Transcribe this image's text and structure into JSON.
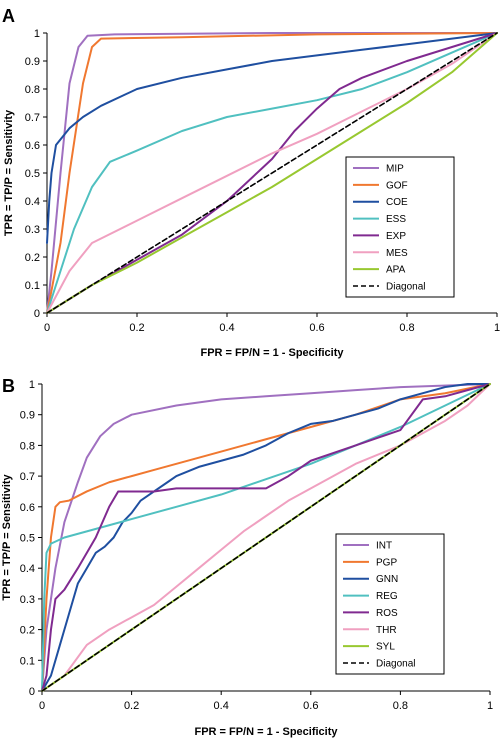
{
  "chart_data": [
    {
      "panel": "A",
      "type": "line",
      "xlabel": "FPR = FP/N = 1 - Specificity",
      "ylabel": "TPR = TP/P = Sensitivity",
      "xlim": [
        0,
        1
      ],
      "ylim": [
        0,
        1
      ],
      "xticks": [
        "0",
        "0.2",
        "0.4",
        "0.6",
        "0.8",
        "1"
      ],
      "yticks": [
        "0",
        "0.1",
        "0.2",
        "0.3",
        "0.4",
        "0.5",
        "0.6",
        "0.7",
        "0.8",
        "0.9",
        "1"
      ],
      "grid": false,
      "legend": "right",
      "series": [
        {
          "name": "MIP",
          "color": "#A070C0",
          "dash": false,
          "points": [
            [
              0,
              0
            ],
            [
              0.01,
              0.15
            ],
            [
              0.03,
              0.5
            ],
            [
              0.05,
              0.82
            ],
            [
              0.07,
              0.95
            ],
            [
              0.09,
              0.99
            ],
            [
              0.15,
              0.995
            ],
            [
              0.5,
              1.0
            ],
            [
              1,
              1
            ]
          ]
        },
        {
          "name": "GOF",
          "color": "#F07830",
          "dash": false,
          "points": [
            [
              0,
              0
            ],
            [
              0.01,
              0.08
            ],
            [
              0.03,
              0.25
            ],
            [
              0.05,
              0.5
            ],
            [
              0.08,
              0.82
            ],
            [
              0.1,
              0.95
            ],
            [
              0.12,
              0.98
            ],
            [
              0.3,
              0.985
            ],
            [
              0.6,
              0.995
            ],
            [
              1,
              1
            ]
          ]
        },
        {
          "name": "COE",
          "color": "#1F4FA0",
          "dash": false,
          "points": [
            [
              0,
              0.25
            ],
            [
              0.005,
              0.4
            ],
            [
              0.01,
              0.5
            ],
            [
              0.02,
              0.6
            ],
            [
              0.05,
              0.66
            ],
            [
              0.08,
              0.7
            ],
            [
              0.12,
              0.74
            ],
            [
              0.2,
              0.8
            ],
            [
              0.3,
              0.84
            ],
            [
              0.4,
              0.87
            ],
            [
              0.5,
              0.9
            ],
            [
              0.6,
              0.92
            ],
            [
              0.7,
              0.94
            ],
            [
              0.8,
              0.96
            ],
            [
              0.9,
              0.98
            ],
            [
              1,
              1
            ]
          ]
        },
        {
          "name": "ESS",
          "color": "#50C0C0",
          "dash": false,
          "points": [
            [
              0,
              0
            ],
            [
              0.03,
              0.15
            ],
            [
              0.06,
              0.3
            ],
            [
              0.1,
              0.45
            ],
            [
              0.14,
              0.54
            ],
            [
              0.2,
              0.58
            ],
            [
              0.3,
              0.65
            ],
            [
              0.4,
              0.7
            ],
            [
              0.5,
              0.73
            ],
            [
              0.6,
              0.76
            ],
            [
              0.7,
              0.8
            ],
            [
              0.8,
              0.86
            ],
            [
              0.9,
              0.93
            ],
            [
              1,
              1
            ]
          ]
        },
        {
          "name": "EXP",
          "color": "#802A90",
          "dash": false,
          "points": [
            [
              0,
              0
            ],
            [
              0.1,
              0.1
            ],
            [
              0.2,
              0.19
            ],
            [
              0.3,
              0.28
            ],
            [
              0.4,
              0.4
            ],
            [
              0.5,
              0.55
            ],
            [
              0.55,
              0.65
            ],
            [
              0.6,
              0.73
            ],
            [
              0.65,
              0.8
            ],
            [
              0.7,
              0.84
            ],
            [
              0.8,
              0.9
            ],
            [
              0.9,
              0.95
            ],
            [
              1,
              1
            ]
          ]
        },
        {
          "name": "MES",
          "color": "#F0A0C0",
          "dash": false,
          "points": [
            [
              0,
              0
            ],
            [
              0.05,
              0.15
            ],
            [
              0.1,
              0.25
            ],
            [
              0.2,
              0.33
            ],
            [
              0.3,
              0.41
            ],
            [
              0.4,
              0.49
            ],
            [
              0.5,
              0.57
            ],
            [
              0.6,
              0.64
            ],
            [
              0.7,
              0.72
            ],
            [
              0.8,
              0.8
            ],
            [
              0.9,
              0.89
            ],
            [
              1,
              1
            ]
          ]
        },
        {
          "name": "APA",
          "color": "#98C830",
          "dash": false,
          "points": [
            [
              0,
              0
            ],
            [
              0.1,
              0.1
            ],
            [
              0.2,
              0.18
            ],
            [
              0.3,
              0.27
            ],
            [
              0.4,
              0.36
            ],
            [
              0.5,
              0.45
            ],
            [
              0.6,
              0.55
            ],
            [
              0.7,
              0.65
            ],
            [
              0.8,
              0.75
            ],
            [
              0.9,
              0.86
            ],
            [
              1,
              1
            ]
          ]
        },
        {
          "name": "Diagonal",
          "color": "#000000",
          "dash": true,
          "points": [
            [
              0,
              0
            ],
            [
              1,
              1
            ]
          ]
        }
      ]
    },
    {
      "panel": "B",
      "type": "line",
      "xlabel": "FPR = FP/N = 1 - Specificity",
      "ylabel": "TPR = TP/P = Sensitivity",
      "xlim": [
        0,
        1
      ],
      "ylim": [
        0,
        1
      ],
      "xticks": [
        "0",
        "0.2",
        "0.4",
        "0.6",
        "0.8",
        "1"
      ],
      "yticks": [
        "0",
        "0.1",
        "0.2",
        "0.3",
        "0.4",
        "0.5",
        "0.6",
        "0.7",
        "0.8",
        "0.9",
        "1"
      ],
      "grid": false,
      "legend": "right",
      "series": [
        {
          "name": "INT",
          "color": "#A070C0",
          "dash": false,
          "points": [
            [
              0,
              0
            ],
            [
              0.01,
              0.2
            ],
            [
              0.03,
              0.4
            ],
            [
              0.05,
              0.55
            ],
            [
              0.08,
              0.68
            ],
            [
              0.1,
              0.76
            ],
            [
              0.13,
              0.83
            ],
            [
              0.16,
              0.87
            ],
            [
              0.2,
              0.9
            ],
            [
              0.3,
              0.93
            ],
            [
              0.4,
              0.95
            ],
            [
              0.5,
              0.96
            ],
            [
              0.6,
              0.97
            ],
            [
              0.7,
              0.98
            ],
            [
              0.8,
              0.99
            ],
            [
              1,
              1
            ]
          ]
        },
        {
          "name": "PGP",
          "color": "#F07830",
          "dash": false,
          "points": [
            [
              0,
              0
            ],
            [
              0.01,
              0.3
            ],
            [
              0.02,
              0.5
            ],
            [
              0.03,
              0.6
            ],
            [
              0.04,
              0.615
            ],
            [
              0.06,
              0.62
            ],
            [
              0.1,
              0.65
            ],
            [
              0.15,
              0.68
            ],
            [
              0.2,
              0.7
            ],
            [
              0.25,
              0.72
            ],
            [
              0.3,
              0.74
            ],
            [
              0.35,
              0.76
            ],
            [
              0.4,
              0.78
            ],
            [
              0.5,
              0.82
            ],
            [
              0.6,
              0.86
            ],
            [
              0.7,
              0.9
            ],
            [
              0.8,
              0.95
            ],
            [
              0.9,
              0.97
            ],
            [
              1,
              1
            ]
          ]
        },
        {
          "name": "GNN",
          "color": "#1F4FA0",
          "dash": false,
          "points": [
            [
              0,
              0
            ],
            [
              0.02,
              0.05
            ],
            [
              0.04,
              0.15
            ],
            [
              0.06,
              0.25
            ],
            [
              0.08,
              0.35
            ],
            [
              0.1,
              0.4
            ],
            [
              0.12,
              0.45
            ],
            [
              0.14,
              0.47
            ],
            [
              0.16,
              0.5
            ],
            [
              0.18,
              0.55
            ],
            [
              0.2,
              0.58
            ],
            [
              0.22,
              0.62
            ],
            [
              0.25,
              0.65
            ],
            [
              0.28,
              0.68
            ],
            [
              0.3,
              0.7
            ],
            [
              0.35,
              0.73
            ],
            [
              0.4,
              0.75
            ],
            [
              0.45,
              0.77
            ],
            [
              0.5,
              0.8
            ],
            [
              0.55,
              0.84
            ],
            [
              0.6,
              0.87
            ],
            [
              0.65,
              0.88
            ],
            [
              0.7,
              0.9
            ],
            [
              0.75,
              0.92
            ],
            [
              0.8,
              0.95
            ],
            [
              0.85,
              0.97
            ],
            [
              0.9,
              0.99
            ],
            [
              0.95,
              1.0
            ],
            [
              1,
              1
            ]
          ]
        },
        {
          "name": "REG",
          "color": "#50C0C0",
          "dash": false,
          "points": [
            [
              0,
              0
            ],
            [
              0.005,
              0.3
            ],
            [
              0.01,
              0.45
            ],
            [
              0.02,
              0.48
            ],
            [
              0.05,
              0.5
            ],
            [
              0.1,
              0.52
            ],
            [
              0.2,
              0.56
            ],
            [
              0.3,
              0.6
            ],
            [
              0.4,
              0.64
            ],
            [
              0.5,
              0.69
            ],
            [
              0.6,
              0.74
            ],
            [
              0.7,
              0.8
            ],
            [
              0.8,
              0.86
            ],
            [
              0.9,
              0.93
            ],
            [
              1,
              1
            ]
          ]
        },
        {
          "name": "ROS",
          "color": "#802A90",
          "dash": false,
          "points": [
            [
              0,
              0
            ],
            [
              0.01,
              0.05
            ],
            [
              0.02,
              0.2
            ],
            [
              0.03,
              0.3
            ],
            [
              0.05,
              0.33
            ],
            [
              0.08,
              0.4
            ],
            [
              0.1,
              0.45
            ],
            [
              0.12,
              0.5
            ],
            [
              0.15,
              0.6
            ],
            [
              0.17,
              0.65
            ],
            [
              0.25,
              0.65
            ],
            [
              0.3,
              0.66
            ],
            [
              0.4,
              0.66
            ],
            [
              0.5,
              0.66
            ],
            [
              0.55,
              0.7
            ],
            [
              0.6,
              0.75
            ],
            [
              0.7,
              0.8
            ],
            [
              0.8,
              0.85
            ],
            [
              0.85,
              0.95
            ],
            [
              0.9,
              0.96
            ],
            [
              0.95,
              0.98
            ],
            [
              1,
              1
            ]
          ]
        },
        {
          "name": "THR",
          "color": "#F0A0C0",
          "dash": false,
          "points": [
            [
              0,
              0
            ],
            [
              0.05,
              0.05
            ],
            [
              0.1,
              0.15
            ],
            [
              0.15,
              0.2
            ],
            [
              0.2,
              0.24
            ],
            [
              0.25,
              0.28
            ],
            [
              0.3,
              0.34
            ],
            [
              0.35,
              0.4
            ],
            [
              0.4,
              0.46
            ],
            [
              0.45,
              0.52
            ],
            [
              0.5,
              0.57
            ],
            [
              0.55,
              0.62
            ],
            [
              0.6,
              0.66
            ],
            [
              0.65,
              0.7
            ],
            [
              0.7,
              0.74
            ],
            [
              0.8,
              0.8
            ],
            [
              0.9,
              0.88
            ],
            [
              0.95,
              0.93
            ],
            [
              1,
              1
            ]
          ]
        },
        {
          "name": "SYL",
          "color": "#98C830",
          "dash": false,
          "points": [
            [
              0,
              0
            ],
            [
              0.5,
              0.5
            ],
            [
              1,
              1
            ]
          ]
        },
        {
          "name": "Diagonal",
          "color": "#000000",
          "dash": true,
          "points": [
            [
              0,
              0
            ],
            [
              1,
              1
            ]
          ]
        }
      ]
    }
  ]
}
